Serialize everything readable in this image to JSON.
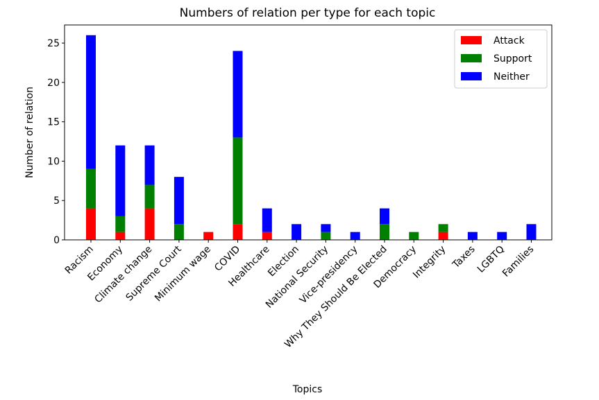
{
  "chart_data": {
    "type": "bar",
    "stacked": true,
    "title": "Numbers of relation per type for each topic",
    "xlabel": "Topics",
    "ylabel": "Number of relation",
    "ylim": [
      0,
      27.3
    ],
    "yticks": [
      0,
      5,
      10,
      15,
      20,
      25
    ],
    "grid": false,
    "legend_position": "top-right",
    "categories": [
      "Racism",
      "Economy",
      "Climate change",
      "Supreme Court",
      "Minimum wage",
      "COVID",
      "Healthcare",
      "Election",
      "National Security",
      "Vice-presidency",
      "Why They Should Be Elected",
      "Democracy",
      "Integrity",
      "Taxes",
      "LGBTQ",
      "Families"
    ],
    "series": [
      {
        "name": "Attack",
        "color": "#ff0000",
        "values": [
          4,
          1,
          4,
          0,
          1,
          2,
          1,
          0,
          0,
          0,
          0,
          0,
          1,
          0,
          0,
          0
        ]
      },
      {
        "name": "Support",
        "color": "#008000",
        "values": [
          5,
          2,
          3,
          2,
          0,
          11,
          0,
          0,
          1,
          0,
          2,
          1,
          1,
          0,
          0,
          0
        ]
      },
      {
        "name": "Neither",
        "color": "#0000ff",
        "values": [
          17,
          9,
          5,
          6,
          0,
          11,
          3,
          2,
          1,
          1,
          2,
          0,
          0,
          1,
          1,
          2
        ]
      }
    ]
  }
}
